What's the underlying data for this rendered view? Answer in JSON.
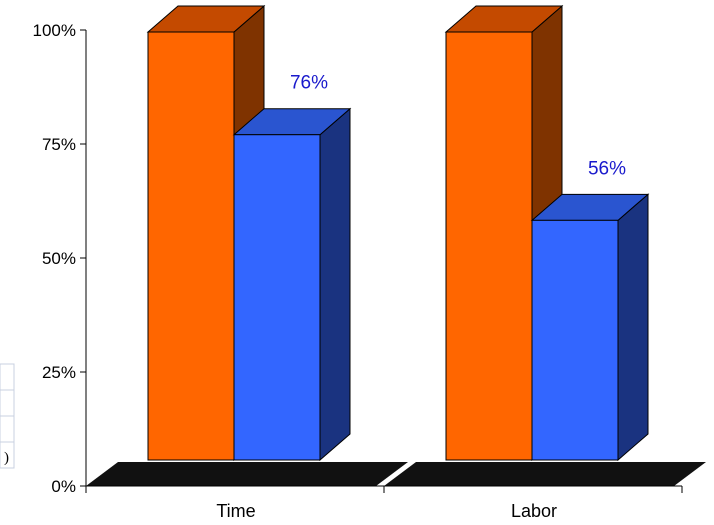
{
  "chart_data": {
    "type": "bar",
    "categories": [
      "Time",
      "Labor"
    ],
    "series": [
      {
        "values": [
          100,
          100
        ],
        "color": "#ff6600",
        "side_color": "#7f3300",
        "top_color": "#c44a00"
      },
      {
        "values": [
          76,
          56
        ],
        "color": "#3366ff",
        "side_color": "#1a3380",
        "top_color": "#2a55d0"
      }
    ],
    "data_labels": [
      {
        "category": "Time",
        "text": "76%"
      },
      {
        "category": "Labor",
        "text": "56%"
      }
    ],
    "data_label_color": "#1a1acc",
    "y_ticks": [
      "0%",
      "25%",
      "50%",
      "75%",
      "100%"
    ],
    "y_tick_values": [
      0,
      25,
      50,
      75,
      100
    ],
    "ylim": [
      0,
      100
    ],
    "floor_color": "#111111",
    "grid": false,
    "legend": "none",
    "partial_occluded_text": ")"
  }
}
